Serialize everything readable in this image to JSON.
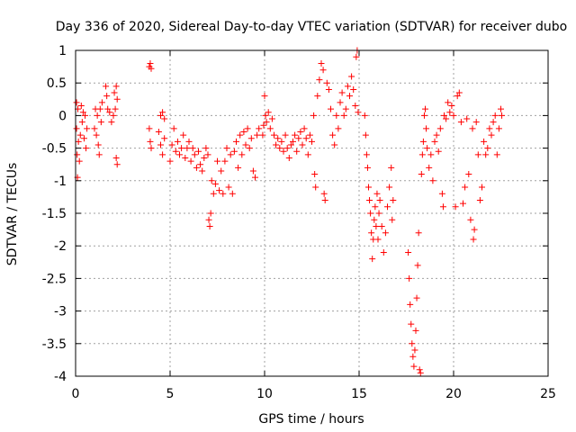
{
  "chart_data": {
    "type": "scatter",
    "title": "Day 336 of 2020, Sidereal Day-to-day VTEC variation (SDTVAR) for receiver dubo",
    "xlabel": "GPS time / hours",
    "ylabel": "SDTVAR / TECUs",
    "xlim": [
      0,
      25
    ],
    "ylim": [
      -4,
      1
    ],
    "xticks": [
      "0",
      "5",
      "10",
      "15",
      "20",
      "25"
    ],
    "yticks": [
      "1",
      "0.5",
      "0",
      "-0.5",
      "-1",
      "-1.5",
      "-2",
      "-2.5",
      "-3",
      "-3.5",
      "-4"
    ],
    "grid": true,
    "marker": "+",
    "series_color": "#ff0000",
    "series": [
      {
        "name": "SDTVAR",
        "points": [
          [
            0.05,
            0.2
          ],
          [
            0.05,
            -0.2
          ],
          [
            0.08,
            -0.6
          ],
          [
            0.1,
            -0.95
          ],
          [
            0.12,
            0.1
          ],
          [
            0.15,
            -0.4
          ],
          [
            0.2,
            -0.7
          ],
          [
            0.25,
            -0.3
          ],
          [
            0.3,
            0.15
          ],
          [
            0.35,
            -0.1
          ],
          [
            0.4,
            0.05
          ],
          [
            0.45,
            -0.35
          ],
          [
            0.5,
            0.0
          ],
          [
            0.55,
            -0.5
          ],
          [
            0.6,
            -0.2
          ],
          [
            1.0,
            -0.2
          ],
          [
            1.05,
            0.1
          ],
          [
            1.1,
            -0.3
          ],
          [
            1.15,
            0.0
          ],
          [
            1.2,
            -0.45
          ],
          [
            1.25,
            -0.6
          ],
          [
            1.3,
            0.1
          ],
          [
            1.35,
            -0.1
          ],
          [
            1.4,
            0.2
          ],
          [
            1.6,
            0.45
          ],
          [
            1.65,
            0.3
          ],
          [
            1.7,
            0.1
          ],
          [
            1.8,
            0.05
          ],
          [
            1.9,
            -0.1
          ],
          [
            2.0,
            0.0
          ],
          [
            2.05,
            0.35
          ],
          [
            2.1,
            0.1
          ],
          [
            2.15,
            0.45
          ],
          [
            2.2,
            0.25
          ],
          [
            2.15,
            -0.65
          ],
          [
            2.2,
            -0.75
          ],
          [
            3.9,
            0.75
          ],
          [
            3.95,
            0.8
          ],
          [
            4.0,
            0.72
          ],
          [
            3.9,
            -0.2
          ],
          [
            3.95,
            -0.4
          ],
          [
            4.0,
            -0.5
          ],
          [
            4.4,
            -0.25
          ],
          [
            4.5,
            -0.45
          ],
          [
            4.6,
            -0.6
          ],
          [
            4.7,
            -0.35
          ],
          [
            4.5,
            0.0
          ],
          [
            4.6,
            0.05
          ],
          [
            4.7,
            -0.05
          ],
          [
            5.0,
            -0.7
          ],
          [
            5.1,
            -0.45
          ],
          [
            5.2,
            -0.2
          ],
          [
            5.3,
            -0.55
          ],
          [
            5.4,
            -0.4
          ],
          [
            5.5,
            -0.6
          ],
          [
            5.6,
            -0.5
          ],
          [
            5.7,
            -0.3
          ],
          [
            5.8,
            -0.65
          ],
          [
            5.9,
            -0.5
          ],
          [
            6.0,
            -0.4
          ],
          [
            6.1,
            -0.7
          ],
          [
            6.2,
            -0.5
          ],
          [
            6.3,
            -0.6
          ],
          [
            6.4,
            -0.8
          ],
          [
            6.5,
            -0.55
          ],
          [
            6.6,
            -0.75
          ],
          [
            6.7,
            -0.85
          ],
          [
            6.8,
            -0.65
          ],
          [
            6.9,
            -0.5
          ],
          [
            7.0,
            -0.6
          ],
          [
            7.05,
            -1.6
          ],
          [
            7.1,
            -1.7
          ],
          [
            7.15,
            -1.5
          ],
          [
            7.2,
            -1.0
          ],
          [
            7.3,
            -1.2
          ],
          [
            7.4,
            -1.05
          ],
          [
            7.5,
            -0.7
          ],
          [
            7.6,
            -1.15
          ],
          [
            7.7,
            -0.85
          ],
          [
            7.8,
            -1.2
          ],
          [
            7.9,
            -0.7
          ],
          [
            8.0,
            -0.5
          ],
          [
            8.1,
            -1.1
          ],
          [
            8.2,
            -0.6
          ],
          [
            8.3,
            -1.2
          ],
          [
            8.4,
            -0.55
          ],
          [
            8.5,
            -0.4
          ],
          [
            8.6,
            -0.8
          ],
          [
            8.7,
            -0.3
          ],
          [
            8.8,
            -0.6
          ],
          [
            8.9,
            -0.25
          ],
          [
            9.0,
            -0.45
          ],
          [
            9.1,
            -0.2
          ],
          [
            9.2,
            -0.5
          ],
          [
            9.3,
            -0.35
          ],
          [
            9.4,
            -0.85
          ],
          [
            9.5,
            -0.95
          ],
          [
            9.6,
            -0.3
          ],
          [
            9.7,
            -0.2
          ],
          [
            9.9,
            -0.3
          ],
          [
            9.95,
            -0.15
          ],
          [
            10.0,
            0.3
          ],
          [
            10.05,
            0.0
          ],
          [
            10.1,
            -0.1
          ],
          [
            10.2,
            0.05
          ],
          [
            10.3,
            -0.2
          ],
          [
            10.4,
            -0.05
          ],
          [
            10.5,
            -0.3
          ],
          [
            10.6,
            -0.45
          ],
          [
            10.7,
            -0.35
          ],
          [
            10.8,
            -0.5
          ],
          [
            10.9,
            -0.4
          ],
          [
            11.0,
            -0.55
          ],
          [
            11.1,
            -0.3
          ],
          [
            11.2,
            -0.5
          ],
          [
            11.3,
            -0.65
          ],
          [
            11.4,
            -0.45
          ],
          [
            11.5,
            -0.4
          ],
          [
            11.6,
            -0.3
          ],
          [
            11.7,
            -0.55
          ],
          [
            11.8,
            -0.35
          ],
          [
            11.9,
            -0.25
          ],
          [
            12.0,
            -0.45
          ],
          [
            12.1,
            -0.2
          ],
          [
            12.2,
            -0.35
          ],
          [
            12.3,
            -0.6
          ],
          [
            12.4,
            -0.3
          ],
          [
            12.5,
            -0.4
          ],
          [
            12.6,
            0.0
          ],
          [
            12.65,
            -0.9
          ],
          [
            12.7,
            -1.1
          ],
          [
            12.8,
            0.3
          ],
          [
            12.9,
            0.55
          ],
          [
            13.0,
            0.8
          ],
          [
            13.1,
            0.7
          ],
          [
            13.15,
            -1.2
          ],
          [
            13.2,
            -1.3
          ],
          [
            13.3,
            0.5
          ],
          [
            13.4,
            0.4
          ],
          [
            13.5,
            0.1
          ],
          [
            13.6,
            -0.3
          ],
          [
            13.7,
            -0.45
          ],
          [
            13.8,
            0.0
          ],
          [
            13.9,
            -0.2
          ],
          [
            14.0,
            0.2
          ],
          [
            14.1,
            0.35
          ],
          [
            14.2,
            0.0
          ],
          [
            14.3,
            0.1
          ],
          [
            14.4,
            0.45
          ],
          [
            14.5,
            0.3
          ],
          [
            14.6,
            0.6
          ],
          [
            14.7,
            0.4
          ],
          [
            14.8,
            0.15
          ],
          [
            14.85,
            0.9
          ],
          [
            14.9,
            1.0
          ],
          [
            14.95,
            0.05
          ],
          [
            15.3,
            0.0
          ],
          [
            15.35,
            -0.3
          ],
          [
            15.4,
            -0.6
          ],
          [
            15.45,
            -0.8
          ],
          [
            15.5,
            -1.1
          ],
          [
            15.55,
            -1.3
          ],
          [
            15.6,
            -1.5
          ],
          [
            15.65,
            -1.8
          ],
          [
            15.7,
            -2.2
          ],
          [
            15.75,
            -1.9
          ],
          [
            15.8,
            -1.6
          ],
          [
            15.85,
            -1.4
          ],
          [
            15.9,
            -1.7
          ],
          [
            15.95,
            -1.2
          ],
          [
            16.0,
            -1.9
          ],
          [
            16.05,
            -1.5
          ],
          [
            16.1,
            -1.3
          ],
          [
            16.2,
            -1.7
          ],
          [
            16.3,
            -2.1
          ],
          [
            16.4,
            -1.8
          ],
          [
            16.5,
            -1.4
          ],
          [
            16.6,
            -1.1
          ],
          [
            16.7,
            -0.8
          ],
          [
            16.75,
            -1.6
          ],
          [
            16.8,
            -1.3
          ],
          [
            17.6,
            -2.1
          ],
          [
            17.65,
            -2.5
          ],
          [
            17.7,
            -2.9
          ],
          [
            17.75,
            -3.2
          ],
          [
            17.8,
            -3.5
          ],
          [
            17.85,
            -3.7
          ],
          [
            17.9,
            -3.85
          ],
          [
            17.95,
            -3.6
          ],
          [
            18.0,
            -3.3
          ],
          [
            18.05,
            -2.8
          ],
          [
            18.1,
            -2.3
          ],
          [
            18.15,
            -1.8
          ],
          [
            18.2,
            -3.9
          ],
          [
            18.25,
            -3.95
          ],
          [
            18.3,
            -0.9
          ],
          [
            18.35,
            -0.6
          ],
          [
            18.4,
            -0.4
          ],
          [
            18.45,
            0.0
          ],
          [
            18.5,
            0.1
          ],
          [
            18.55,
            -0.2
          ],
          [
            18.6,
            -0.5
          ],
          [
            18.7,
            -0.8
          ],
          [
            18.8,
            -0.6
          ],
          [
            18.9,
            -1.0
          ],
          [
            19.0,
            -0.4
          ],
          [
            19.1,
            -0.3
          ],
          [
            19.2,
            -0.55
          ],
          [
            19.3,
            -0.2
          ],
          [
            19.4,
            -1.2
          ],
          [
            19.45,
            -1.4
          ],
          [
            19.5,
            0.0
          ],
          [
            19.6,
            -0.05
          ],
          [
            19.7,
            0.2
          ],
          [
            19.8,
            0.05
          ],
          [
            19.9,
            0.15
          ],
          [
            20.0,
            0.0
          ],
          [
            20.1,
            -1.4
          ],
          [
            20.2,
            0.3
          ],
          [
            20.3,
            0.35
          ],
          [
            20.4,
            -0.1
          ],
          [
            20.5,
            -1.35
          ],
          [
            20.6,
            -1.1
          ],
          [
            20.7,
            -0.05
          ],
          [
            20.8,
            -0.9
          ],
          [
            20.9,
            -1.6
          ],
          [
            21.0,
            -0.2
          ],
          [
            21.05,
            -1.9
          ],
          [
            21.1,
            -1.75
          ],
          [
            21.2,
            -0.1
          ],
          [
            21.3,
            -0.6
          ],
          [
            21.4,
            -1.3
          ],
          [
            21.5,
            -1.1
          ],
          [
            21.6,
            -0.4
          ],
          [
            21.7,
            -0.6
          ],
          [
            21.8,
            -0.5
          ],
          [
            21.9,
            -0.2
          ],
          [
            22.0,
            -0.3
          ],
          [
            22.1,
            -0.1
          ],
          [
            22.2,
            0.0
          ],
          [
            22.3,
            -0.6
          ],
          [
            22.4,
            -0.2
          ],
          [
            22.5,
            0.1
          ],
          [
            22.55,
            0.0
          ]
        ]
      }
    ]
  }
}
